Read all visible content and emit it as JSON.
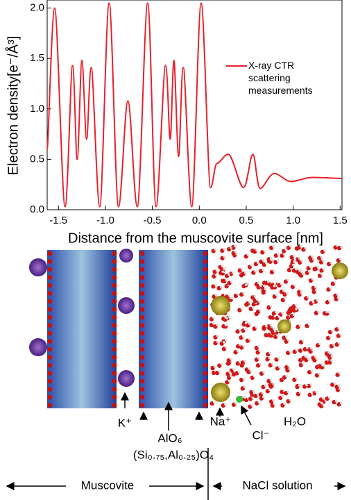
{
  "chart_data": {
    "type": "line",
    "x_label": "Distance from the muscovite surface [nm]",
    "y_label": "Electron density[e⁻/Å³]",
    "xlim": [
      -1.62,
      1.52
    ],
    "ylim": [
      0,
      2.08
    ],
    "xticks": [
      -1.5,
      {
        "value": -1.0,
        "label": "-1.0"
      },
      -0.5,
      {
        "value": 0,
        "label": "0.0"
      },
      0.5,
      {
        "value": 1.0,
        "label": "1.0"
      },
      1.5
    ],
    "yticks": [
      {
        "value": 0,
        "label": "0.0"
      },
      0.5,
      {
        "value": 1.0,
        "label": "1.0"
      },
      1.5,
      {
        "value": 2.0,
        "label": "2.0"
      }
    ],
    "x": [
      -1.62,
      -1.54,
      -1.43,
      -1.35,
      -1.3,
      -1.25,
      -1.2,
      -1.15,
      -1.06,
      -0.96,
      -0.86,
      -0.76,
      -0.66,
      -0.55,
      -0.46,
      -0.36,
      -0.31,
      -0.27,
      -0.22,
      -0.17,
      -0.08,
      0.02,
      0.12,
      0.19,
      0.31,
      0.47,
      0.57,
      0.65,
      0.8,
      0.98,
      1.21,
      1.52
    ],
    "series": [
      {
        "name": "X-ray CTR scattering measurements",
        "color": "#e8202a",
        "values": [
          0.6,
          2.0,
          0.03,
          1.43,
          0.5,
          1.48,
          0.7,
          1.41,
          0.03,
          2.05,
          0.03,
          1.08,
          0.03,
          2.05,
          0.03,
          1.43,
          0.7,
          1.48,
          0.53,
          1.41,
          0.03,
          2.05,
          0.22,
          0.46,
          0.55,
          0.22,
          0.55,
          0.21,
          0.36,
          0.28,
          0.32,
          0.31
        ]
      }
    ]
  },
  "structure_labels": {
    "k": "K⁺",
    "alo6": "AlO₆",
    "na": "Na⁺",
    "cl": "Cl⁻",
    "h2o": "H₂O",
    "tetra": "(Si₀.₇₅,Al₀.₂₅)O₄",
    "muscovite": "Muscovite",
    "solution": "NaCl solution"
  }
}
